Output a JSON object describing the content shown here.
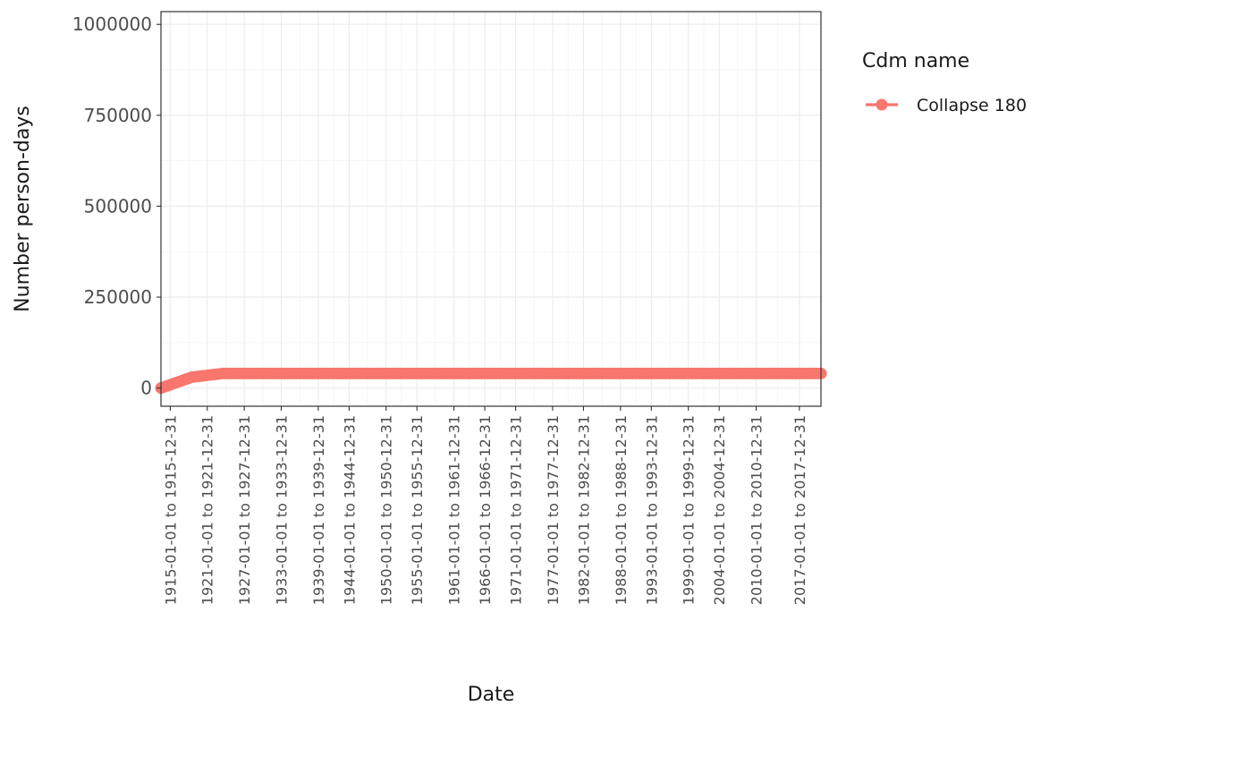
{
  "chart_data": {
    "type": "line",
    "xlabel": "Date",
    "ylabel": "Number person-days",
    "legend_title": "Cdm name",
    "legend_position": "right",
    "grid": true,
    "ylim": [
      -50000,
      1035000
    ],
    "x_range": [
      1913.5,
      2020.5
    ],
    "y_ticks": [
      0,
      250000,
      500000,
      750000,
      1000000
    ],
    "y_tick_labels": [
      "0",
      "250000",
      "500000",
      "750000",
      "1000000"
    ],
    "x_tick_labels": [
      "1915-01-01 to 1915-12-31",
      "1921-01-01 to 1921-12-31",
      "1927-01-01 to 1927-12-31",
      "1933-01-01 to 1933-12-31",
      "1939-01-01 to 1939-12-31",
      "1944-01-01 to 1944-12-31",
      "1950-01-01 to 1950-12-31",
      "1955-01-01 to 1955-12-31",
      "1961-01-01 to 1961-12-31",
      "1966-01-01 to 1966-12-31",
      "1971-01-01 to 1971-12-31",
      "1977-01-01 to 1977-12-31",
      "1982-01-01 to 1982-12-31",
      "1988-01-01 to 1988-12-31",
      "1993-01-01 to 1993-12-31",
      "1999-01-01 to 1999-12-31",
      "2004-01-01 to 2004-12-31",
      "2010-01-01 to 2010-12-31",
      "2017-01-01 to 2017-12-31"
    ],
    "x_tick_years": [
      1915,
      1921,
      1927,
      1933,
      1939,
      1944,
      1950,
      1955,
      1961,
      1966,
      1971,
      1977,
      1982,
      1988,
      1993,
      1999,
      2004,
      2010,
      2017
    ],
    "x_start_year": 1913.5,
    "x_step_years": 0.5,
    "series": [
      {
        "name": "Collapse 180",
        "color": "#F8766D",
        "values": [
          0,
          3000,
          6000,
          9000,
          12000,
          15000,
          18000,
          21000,
          24000,
          27000,
          30000,
          31000,
          32000,
          33000,
          34000,
          35000,
          36000,
          37000,
          38000,
          39000,
          40000,
          40000,
          40000,
          40000,
          40000,
          40000,
          40000,
          40000,
          40000,
          40000,
          40000,
          40000,
          40000,
          40000,
          40000,
          40000,
          40000,
          40000,
          40000,
          40000,
          40000,
          40000,
          40000,
          40000,
          40000,
          40000,
          40000,
          40000,
          40000,
          40000,
          40000,
          40000,
          40000,
          40000,
          40000,
          40000,
          40000,
          40000,
          40000,
          40000,
          40000,
          40000,
          40000,
          40000,
          40000,
          40000,
          40000,
          40000,
          40000,
          40000,
          40000,
          40000,
          40000,
          40000,
          40000,
          40000,
          40000,
          40000,
          40000,
          40000,
          40000,
          40000,
          40000,
          40000,
          40000,
          40000,
          40000,
          40000,
          40000,
          40000,
          40000,
          40000,
          40000,
          40000,
          40000,
          40000,
          40000,
          40000,
          40000,
          40000,
          40000,
          40000,
          40000,
          40000,
          40000,
          40000,
          40000,
          40000,
          40000,
          40000,
          40000,
          40000,
          40000,
          40000,
          40000,
          40000,
          40000,
          40000,
          40000,
          40000,
          40000,
          40000,
          40000,
          40000,
          40000,
          40000,
          40000,
          40000,
          40000,
          40000,
          40000,
          40000,
          40000,
          40000,
          40000,
          40000,
          40000,
          40000,
          40000,
          40000,
          40000,
          40000,
          40000,
          40000,
          40000,
          40000,
          40000,
          40000,
          40000,
          40000,
          40000,
          40000,
          40000,
          40000,
          40000,
          40000,
          40000,
          40000,
          40000,
          40000,
          40000,
          40000,
          40000,
          40000,
          40000,
          40000,
          40000,
          40000,
          40000,
          40000,
          40000,
          40000,
          40000,
          40000,
          40000,
          40000,
          40000,
          40000,
          40000,
          40000,
          40000,
          40000,
          40000,
          40000,
          40000,
          40000,
          40000,
          40000,
          40000,
          40000,
          40000,
          40000,
          40000,
          40000,
          40000,
          40000,
          40000,
          40000,
          40000,
          40000,
          40000,
          40000,
          40000,
          40000,
          40000,
          40000,
          40000,
          40000,
          40000,
          40000,
          40000,
          40000,
          40000,
          40000,
          40000,
          40000,
          40000,
          40000,
          40000,
          40000,
          40000,
          40000,
          40000,
          40000,
          40000,
          40000,
          40000,
          40000,
          40000,
          40000,
          40000,
          40000,
          40000,
          40000,
          40000,
          40000,
          40000,
          40000,
          40000,
          40000,
          40000,
          40000,
          40000,
          40000,
          40000,
          40000,
          40000,
          40000,
          40000,
          40000,
          40000,
          40000,
          40000,
          40000,
          40000,
          40000,
          40000,
          40000,
          40000,
          40000,
          40000,
          40000,
          40000,
          40000,
          40000,
          40000,
          40000,
          40000,
          40000,
          40000,
          40000,
          40000,
          40000,
          40000,
          40000,
          40000,
          40000,
          40000,
          40000,
          40000,
          40000,
          40000,
          40000,
          40000,
          40000,
          40000,
          40000,
          40000,
          40000,
          40000,
          40000,
          40000,
          40000,
          40000,
          40000,
          40000,
          40000,
          40000,
          40000,
          40000,
          40000,
          40000,
          40000,
          40000,
          40000,
          40000,
          40000,
          40000,
          40000,
          40000,
          40000,
          40000,
          40000,
          40000,
          40000,
          40000,
          40000,
          40000,
          40000,
          40000,
          40000,
          40000,
          40000,
          40000,
          40000,
          40000,
          40000,
          40000,
          40000,
          40000,
          40000,
          40000,
          40000,
          40000,
          40000,
          40000,
          40000,
          40000,
          40000,
          40000,
          40000,
          40000,
          40000,
          40000,
          40000,
          40000,
          40000,
          40000,
          40000,
          40000,
          40000,
          40000,
          40000,
          40000,
          40000,
          40000,
          40000,
          40000,
          40000,
          40000,
          40000,
          40000,
          40000,
          40000,
          40000,
          40000,
          40000,
          40000,
          40000,
          40000,
          40000,
          40000,
          40000,
          40000,
          40000,
          40000,
          40000,
          40000,
          40000,
          40000,
          40000,
          40000,
          40000,
          40000,
          40000,
          40000,
          40000,
          40000,
          40000,
          40000,
          40000,
          40000,
          40000,
          40000,
          40000,
          40000,
          40000,
          40000,
          40000,
          40000,
          40000,
          40000,
          40000,
          40000,
          40000,
          40000,
          40000,
          40000,
          40000,
          40000,
          40000,
          40000,
          40000
        ]
      }
    ]
  }
}
